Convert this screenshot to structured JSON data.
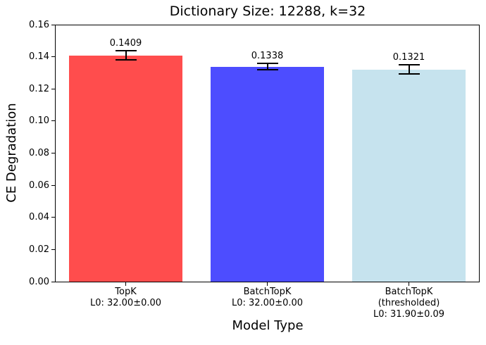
{
  "chart_data": {
    "type": "bar",
    "title": "Dictionary Size: 12288, k=32",
    "xlabel": "Model Type",
    "ylabel": "CE Degradation",
    "ylim": [
      0,
      0.16
    ],
    "yticks": [
      0.0,
      0.02,
      0.04,
      0.06,
      0.08,
      0.1,
      0.12,
      0.14,
      0.16
    ],
    "grid": false,
    "legend_position": "none",
    "categories": [
      [
        "TopK",
        "L0: 32.00±0.00"
      ],
      [
        "BatchTopK",
        "L0: 32.00±0.00"
      ],
      [
        "BatchTopK",
        "(thresholded)",
        "L0: 31.90±0.09"
      ]
    ],
    "values": [
      0.1409,
      0.1338,
      0.1321
    ],
    "errors": [
      0.003,
      0.002,
      0.003
    ],
    "value_labels": [
      "0.1409",
      "0.1338",
      "0.1321"
    ],
    "bar_colors": [
      "#ff4d4d",
      "#4d4dff",
      "#c6e3ee"
    ],
    "error_bar_color": "#000000",
    "axis_color": "#000000"
  }
}
